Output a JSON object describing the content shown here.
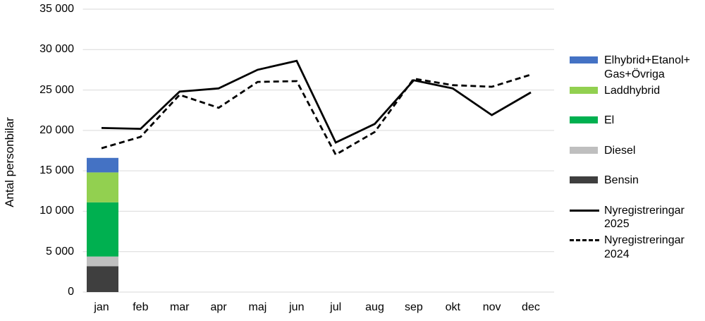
{
  "chart_data": {
    "type": "combo-bar-line",
    "title": "",
    "xlabel": "",
    "ylabel": "Antal personbilar",
    "grid": true,
    "legend_position": "right",
    "categories": [
      "jan",
      "feb",
      "mar",
      "apr",
      "maj",
      "jun",
      "jul",
      "aug",
      "sep",
      "okt",
      "nov",
      "dec"
    ],
    "y_axis": {
      "min": 0,
      "max": 35000,
      "step": 5000,
      "tick_labels": [
        "0",
        "5 000",
        "10 000",
        "15 000",
        "20 000",
        "25 000",
        "30 000",
        "35 000"
      ]
    },
    "bar": {
      "category": "jan",
      "type": "stacked",
      "segments": [
        {
          "key": "bensin",
          "name": "Bensin",
          "value": 3200,
          "color": "#3F3F3F"
        },
        {
          "key": "diesel",
          "name": "Diesel",
          "value": 1200,
          "color": "#BFBFBF"
        },
        {
          "key": "el",
          "name": "El",
          "value": 6700,
          "color": "#00B050"
        },
        {
          "key": "laddhybrid",
          "name": "Laddhybrid",
          "value": 3700,
          "color": "#92D050"
        },
        {
          "key": "elhybrid-etanol-gas-ovriga",
          "name": "Elhybrid+Etanol+Gas+Övriga",
          "value": 1800,
          "color": "#4472C4"
        }
      ]
    },
    "series": [
      {
        "key": "nyregistreringar-2025",
        "name": "Nyregistreringar 2025",
        "type": "line",
        "style": "solid",
        "color": "#000000",
        "values": [
          20300,
          20200,
          24800,
          25200,
          27500,
          28600,
          18500,
          20800,
          26200,
          25200,
          21900,
          24700
        ]
      },
      {
        "key": "nyregistreringar-2024",
        "name": "Nyregistreringar 2024",
        "type": "line",
        "style": "dashed",
        "color": "#000000",
        "values": [
          17800,
          19200,
          24400,
          22800,
          26000,
          26100,
          17000,
          19800,
          26400,
          25600,
          25400,
          26900
        ]
      }
    ],
    "legend_items": [
      {
        "key": "elhybrid-etanol-gas-ovriga",
        "swatch": "bar",
        "color": "#4472C4",
        "lines": [
          "Elhybrid+Etanol+",
          "Gas+Övriga"
        ]
      },
      {
        "key": "laddhybrid",
        "swatch": "bar",
        "color": "#92D050",
        "lines": [
          "Laddhybrid"
        ]
      },
      {
        "key": "el",
        "swatch": "bar",
        "color": "#00B050",
        "lines": [
          "El"
        ]
      },
      {
        "key": "diesel",
        "swatch": "bar",
        "color": "#BFBFBF",
        "lines": [
          "Diesel"
        ]
      },
      {
        "key": "bensin",
        "swatch": "bar",
        "color": "#3F3F3F",
        "lines": [
          "Bensin"
        ]
      },
      {
        "key": "nyregistreringar-2025",
        "swatch": "line-solid",
        "color": "#000000",
        "lines": [
          "Nyregistreringar",
          "2025"
        ]
      },
      {
        "key": "nyregistreringar-2024",
        "swatch": "line-dashed",
        "color": "#000000",
        "lines": [
          "Nyregistreringar",
          "2024"
        ]
      }
    ],
    "style": {
      "gridline_color": "#D9D9D9",
      "text_color": "#000000",
      "background": "#FFFFFF"
    }
  }
}
